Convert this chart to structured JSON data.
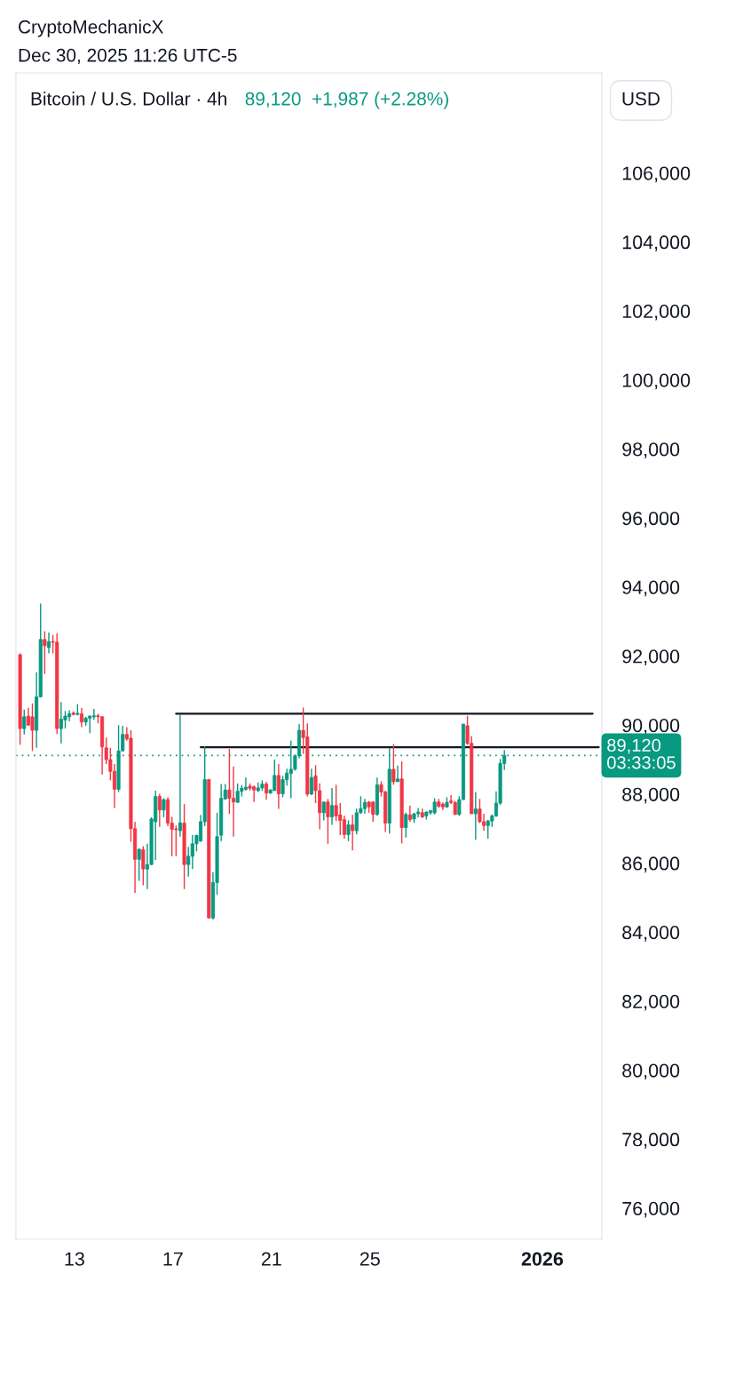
{
  "chart_data": {
    "type": "candlestick",
    "title": "Bitcoin / U.S. Dollar · 4h",
    "subtitle": "89,120  +1,987 (+2.28%)",
    "annotations": [
      "CryptoMechanicX",
      "Dec 30, 2025 11:26 UTC-5",
      "USD",
      "03:33:05"
    ],
    "x": [
      "2025-12-10T19:00",
      "2025-12-10T23:00",
      "2025-12-11T03:00",
      "2025-12-11T07:00",
      "2025-12-11T11:00",
      "2025-12-11T15:00",
      "2025-12-11T19:00",
      "2025-12-11T23:00",
      "2025-12-12T03:00",
      "2025-12-12T07:00",
      "2025-12-12T11:00",
      "2025-12-12T15:00",
      "2025-12-12T19:00",
      "2025-12-12T23:00",
      "2025-12-13T03:00",
      "2025-12-13T07:00",
      "2025-12-13T11:00",
      "2025-12-13T15:00",
      "2025-12-13T19:00",
      "2025-12-13T23:00",
      "2025-12-14T03:00",
      "2025-12-14T07:00",
      "2025-12-14T11:00",
      "2025-12-14T15:00",
      "2025-12-14T19:00",
      "2025-12-14T23:00",
      "2025-12-15T03:00",
      "2025-12-15T07:00",
      "2025-12-15T11:00",
      "2025-12-15T15:00",
      "2025-12-15T19:00",
      "2025-12-15T23:00",
      "2025-12-16T03:00",
      "2025-12-16T07:00",
      "2025-12-16T11:00",
      "2025-12-16T15:00",
      "2025-12-16T19:00",
      "2025-12-16T23:00",
      "2025-12-17T03:00",
      "2025-12-17T07:00",
      "2025-12-17T11:00",
      "2025-12-17T15:00",
      "2025-12-17T19:00",
      "2025-12-17T23:00",
      "2025-12-18T03:00",
      "2025-12-18T07:00",
      "2025-12-18T11:00",
      "2025-12-18T15:00",
      "2025-12-18T19:00",
      "2025-12-18T23:00",
      "2025-12-19T03:00",
      "2025-12-19T07:00",
      "2025-12-19T11:00",
      "2025-12-19T15:00",
      "2025-12-19T19:00",
      "2025-12-19T23:00",
      "2025-12-20T03:00",
      "2025-12-20T07:00",
      "2025-12-20T11:00",
      "2025-12-20T15:00",
      "2025-12-20T19:00",
      "2025-12-20T23:00",
      "2025-12-21T03:00",
      "2025-12-21T07:00",
      "2025-12-21T11:00",
      "2025-12-21T15:00",
      "2025-12-21T19:00",
      "2025-12-21T23:00",
      "2025-12-22T03:00",
      "2025-12-22T07:00",
      "2025-12-22T11:00",
      "2025-12-22T15:00",
      "2025-12-22T19:00",
      "2025-12-22T23:00",
      "2025-12-23T03:00",
      "2025-12-23T07:00",
      "2025-12-23T11:00",
      "2025-12-23T15:00",
      "2025-12-23T19:00",
      "2025-12-23T23:00",
      "2025-12-24T03:00",
      "2025-12-24T07:00",
      "2025-12-24T11:00",
      "2025-12-24T15:00",
      "2025-12-24T19:00",
      "2025-12-24T23:00",
      "2025-12-25T03:00",
      "2025-12-25T07:00",
      "2025-12-25T11:00",
      "2025-12-25T15:00",
      "2025-12-25T19:00",
      "2025-12-25T23:00",
      "2025-12-26T03:00",
      "2025-12-26T07:00",
      "2025-12-26T11:00",
      "2025-12-26T15:00",
      "2025-12-26T19:00",
      "2025-12-26T23:00",
      "2025-12-27T03:00",
      "2025-12-27T07:00",
      "2025-12-27T11:00",
      "2025-12-27T15:00",
      "2025-12-27T19:00",
      "2025-12-27T23:00",
      "2025-12-28T03:00",
      "2025-12-28T07:00",
      "2025-12-28T11:00",
      "2025-12-28T15:00",
      "2025-12-28T19:00",
      "2025-12-28T23:00",
      "2025-12-29T03:00",
      "2025-12-29T07:00",
      "2025-12-29T11:00",
      "2025-12-29T15:00",
      "2025-12-29T19:00",
      "2025-12-29T23:00",
      "2025-12-30T03:00",
      "2025-12-30T07:00",
      "2025-12-30T11:00"
    ],
    "ohlc": [
      [
        92040,
        92080,
        89430,
        89900
      ],
      [
        89900,
        90450,
        89730,
        90240
      ],
      [
        90260,
        90500,
        89980,
        90000
      ],
      [
        90240,
        90630,
        89250,
        89850
      ],
      [
        89850,
        91530,
        89340,
        90820
      ],
      [
        90820,
        93520,
        90800,
        92480
      ],
      [
        92480,
        92720,
        91480,
        92300
      ],
      [
        92250,
        92680,
        92080,
        92420
      ],
      [
        92420,
        92610,
        92080,
        92400
      ],
      [
        92400,
        92660,
        89740,
        89900
      ],
      [
        89900,
        90670,
        89470,
        90170
      ],
      [
        90150,
        90410,
        89900,
        90260
      ],
      [
        90240,
        90430,
        90110,
        90330
      ],
      [
        90350,
        90400,
        90280,
        90310
      ],
      [
        90310,
        90610,
        90280,
        90340
      ],
      [
        90330,
        90500,
        89940,
        90090
      ],
      [
        90090,
        90240,
        89980,
        90200
      ],
      [
        90200,
        90280,
        89770,
        90260
      ],
      [
        90240,
        90470,
        90150,
        90270
      ],
      [
        90270,
        90330,
        90050,
        90240
      ],
      [
        90240,
        90260,
        88570,
        89370
      ],
      [
        89340,
        89640,
        88870,
        89000
      ],
      [
        89000,
        89340,
        88400,
        88660
      ],
      [
        88660,
        88870,
        87600,
        88140
      ],
      [
        88140,
        90000,
        88060,
        89250
      ],
      [
        89250,
        89980,
        89250,
        89730
      ],
      [
        89730,
        89940,
        89550,
        89600
      ],
      [
        89620,
        89850,
        86620,
        87000
      ],
      [
        87000,
        87200,
        85140,
        86110
      ],
      [
        86110,
        86430,
        85490,
        86400
      ],
      [
        86390,
        86490,
        85360,
        85830
      ],
      [
        85830,
        86560,
        85250,
        85960
      ],
      [
        85960,
        87330,
        85940,
        87280
      ],
      [
        87200,
        88100,
        86090,
        87930
      ],
      [
        87930,
        88010,
        87050,
        87540
      ],
      [
        87540,
        87880,
        87330,
        87840
      ],
      [
        87840,
        87910,
        87070,
        87160
      ],
      [
        87160,
        87340,
        86200,
        86980
      ],
      [
        86990,
        87090,
        86200,
        86970
      ],
      [
        86940,
        90300,
        86770,
        87170
      ],
      [
        87160,
        87710,
        85250,
        85960
      ],
      [
        85960,
        86470,
        85610,
        86200
      ],
      [
        86200,
        86810,
        85830,
        86560
      ],
      [
        86560,
        86830,
        86340,
        86800
      ],
      [
        86640,
        87400,
        86620,
        87200
      ],
      [
        87200,
        89380,
        87070,
        88420
      ],
      [
        88420,
        88440,
        84410,
        84410
      ],
      [
        84410,
        85740,
        84370,
        85440
      ],
      [
        85440,
        87460,
        85080,
        86770
      ],
      [
        86810,
        88290,
        86640,
        87880
      ],
      [
        87860,
        88290,
        87840,
        88120
      ],
      [
        88120,
        89310,
        87430,
        87880
      ],
      [
        87880,
        88800,
        86770,
        87770
      ],
      [
        87760,
        88310,
        87760,
        88080
      ],
      [
        88080,
        88270,
        87930,
        88170
      ],
      [
        88140,
        88480,
        88100,
        88200
      ],
      [
        88230,
        88310,
        88100,
        88170
      ],
      [
        88210,
        88250,
        87770,
        88120
      ],
      [
        88100,
        88340,
        88060,
        88180
      ],
      [
        88180,
        88400,
        88100,
        88290
      ],
      [
        88290,
        88360,
        87840,
        88030
      ],
      [
        88030,
        88140,
        88010,
        88120
      ],
      [
        88100,
        89000,
        88100,
        88540
      ],
      [
        88540,
        88870,
        87570,
        88010
      ],
      [
        88010,
        88530,
        87910,
        88420
      ],
      [
        88420,
        88740,
        88250,
        88610
      ],
      [
        88600,
        89550,
        87880,
        88720
      ],
      [
        88720,
        89140,
        88680,
        89110
      ],
      [
        89110,
        90030,
        89040,
        89850
      ],
      [
        89850,
        90510,
        89170,
        89640
      ],
      [
        89660,
        90050,
        87930,
        88000
      ],
      [
        88000,
        88740,
        87970,
        88480
      ],
      [
        88530,
        88840,
        87740,
        88100
      ],
      [
        88100,
        88310,
        86980,
        87460
      ],
      [
        87460,
        87780,
        87240,
        87770
      ],
      [
        87770,
        87860,
        86560,
        87340
      ],
      [
        87340,
        88180,
        87110,
        87670
      ],
      [
        87670,
        88270,
        87220,
        87370
      ],
      [
        87400,
        87740,
        86810,
        87240
      ],
      [
        87260,
        87370,
        86710,
        86830
      ],
      [
        86830,
        87240,
        86640,
        87110
      ],
      [
        87110,
        87400,
        86370,
        86940
      ],
      [
        86940,
        87580,
        86830,
        87460
      ],
      [
        87460,
        87940,
        87430,
        87580
      ],
      [
        87580,
        87860,
        87430,
        87760
      ],
      [
        87770,
        87800,
        87460,
        87630
      ],
      [
        87770,
        87800,
        87200,
        87410
      ],
      [
        87410,
        88480,
        87370,
        88270
      ],
      [
        88270,
        88370,
        87930,
        88060
      ],
      [
        88060,
        88100,
        86900,
        87160
      ],
      [
        87160,
        89340,
        86860,
        88720
      ],
      [
        88720,
        89450,
        88270,
        88360
      ],
      [
        88360,
        88830,
        88360,
        88440
      ],
      [
        88440,
        88950,
        86570,
        87030
      ],
      [
        87030,
        87460,
        86740,
        87410
      ],
      [
        87400,
        87670,
        87200,
        87260
      ],
      [
        87280,
        87460,
        87170,
        87430
      ],
      [
        87430,
        87600,
        87330,
        87480
      ],
      [
        87460,
        87580,
        87310,
        87340
      ],
      [
        87370,
        87500,
        87260,
        87480
      ],
      [
        87460,
        87540,
        87400,
        87520
      ],
      [
        87460,
        87880,
        87410,
        87770
      ],
      [
        87770,
        87860,
        87600,
        87650
      ],
      [
        87710,
        87760,
        87540,
        87630
      ],
      [
        87630,
        87910,
        87600,
        87760
      ],
      [
        87800,
        87970,
        87710,
        87760
      ],
      [
        87760,
        87800,
        87400,
        87410
      ],
      [
        87410,
        87940,
        87370,
        87840
      ],
      [
        87840,
        90030,
        87840,
        90030
      ],
      [
        89980,
        90270,
        89430,
        89470
      ],
      [
        89470,
        89680,
        87430,
        87430
      ],
      [
        87430,
        88060,
        86680,
        87570
      ],
      [
        87570,
        87860,
        87160,
        87200
      ],
      [
        87200,
        87430,
        86940,
        87090
      ],
      [
        87090,
        87260,
        86710,
        87220
      ],
      [
        87220,
        87410,
        87050,
        87370
      ],
      [
        87370,
        88080,
        87340,
        87740
      ],
      [
        87740,
        89020,
        87690,
        88890
      ],
      [
        88890,
        89280,
        88700,
        89120
      ]
    ],
    "colors": [
      "#f23645",
      "#089981",
      "#f23645",
      "#f23645",
      "#089981",
      "#089981",
      "#f23645",
      "#089981",
      "#f23645",
      "#f23645",
      "#089981",
      "#089981",
      "#089981",
      "#f23645",
      "#089981",
      "#f23645",
      "#089981",
      "#089981",
      "#089981",
      "#f23645",
      "#f23645",
      "#f23645",
      "#f23645",
      "#f23645",
      "#089981",
      "#089981",
      "#f23645",
      "#f23645",
      "#f23645",
      "#089981",
      "#f23645",
      "#089981",
      "#089981",
      "#089981",
      "#f23645",
      "#089981",
      "#f23645",
      "#f23645",
      "#f23645",
      "#089981",
      "#f23645",
      "#089981",
      "#089981",
      "#089981",
      "#089981",
      "#089981",
      "#f23645",
      "#089981",
      "#089981",
      "#089981",
      "#089981",
      "#f23645",
      "#f23645",
      "#089981",
      "#089981",
      "#089981",
      "#f23645",
      "#f23645",
      "#089981",
      "#089981",
      "#f23645",
      "#089981",
      "#089981",
      "#f23645",
      "#089981",
      "#089981",
      "#089981",
      "#089981",
      "#089981",
      "#f23645",
      "#f23645",
      "#089981",
      "#f23645",
      "#f23645",
      "#089981",
      "#f23645",
      "#089981",
      "#f23645",
      "#f23645",
      "#f23645",
      "#089981",
      "#f23645",
      "#089981",
      "#089981",
      "#089981",
      "#f23645",
      "#f23645",
      "#089981",
      "#f23645",
      "#f23645",
      "#089981",
      "#f23645",
      "#089981",
      "#f23645",
      "#089981",
      "#f23645",
      "#089981",
      "#089981",
      "#f23645",
      "#089981",
      "#089981",
      "#089981",
      "#f23645",
      "#f23645",
      "#089981",
      "#f23645",
      "#f23645",
      "#089981",
      "#089981",
      "#f23645",
      "#f23645",
      "#089981",
      "#f23645",
      "#f23645",
      "#089981",
      "#089981",
      "#089981",
      "#089981",
      "#089981"
    ],
    "series": [
      {
        "type": "line",
        "color": "#131722",
        "x": [
          "2025-12-17T03:00",
          "2026-01-03T01:00"
        ],
        "values": [
          90330,
          90330
        ]
      },
      {
        "type": "line",
        "color": "#131722",
        "x": [
          "2025-12-18T03:00",
          "2026-01-03T07:00"
        ],
        "values": [
          89360,
          89360
        ]
      }
    ],
    "ref_lines": [
      {
        "axis": "y",
        "value": 89120,
        "label": "89,120",
        "color": "#089981",
        "line_style": "dotted"
      }
    ],
    "xlim": [
      "2025-12-10T15:00",
      "2026-01-03T10:00"
    ],
    "xticks": [
      {
        "value": "2025-12-13",
        "label": "13"
      },
      {
        "value": "2025-12-17",
        "label": "17"
      },
      {
        "value": "2025-12-21",
        "label": "21"
      },
      {
        "value": "2025-12-25",
        "label": "25"
      },
      {
        "value": "2026-01-01",
        "label": "2026"
      }
    ],
    "ylim": [
      75100,
      108900
    ],
    "yticks": [
      {
        "value": 76000,
        "label": "76,000"
      },
      {
        "value": 78000,
        "label": "78,000"
      },
      {
        "value": 80000,
        "label": "80,000"
      },
      {
        "value": 82000,
        "label": "82,000"
      },
      {
        "value": 84000,
        "label": "84,000"
      },
      {
        "value": 86000,
        "label": "86,000"
      },
      {
        "value": 88000,
        "label": "88,000"
      },
      {
        "value": 90000,
        "label": "90,000"
      },
      {
        "value": 92000,
        "label": "92,000"
      },
      {
        "value": 94000,
        "label": "94,000"
      },
      {
        "value": 96000,
        "label": "96,000"
      },
      {
        "value": 98000,
        "label": "98,000"
      },
      {
        "value": 100000,
        "label": "100,000"
      },
      {
        "value": 102000,
        "label": "102,000"
      },
      {
        "value": 104000,
        "label": "104,000"
      },
      {
        "value": 106000,
        "label": "106,000"
      }
    ],
    "grid": false
  }
}
